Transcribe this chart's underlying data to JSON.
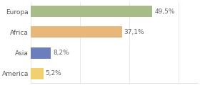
{
  "categories": [
    "Europa",
    "Africa",
    "Asia",
    "America"
  ],
  "values": [
    49.5,
    37.1,
    8.2,
    5.2
  ],
  "labels": [
    "49,5%",
    "37,1%",
    "8,2%",
    "5,2%"
  ],
  "bar_colors": [
    "#a8bb8a",
    "#e8b87a",
    "#6b7fbf",
    "#f0d070"
  ],
  "xlim": [
    0,
    68
  ],
  "background_color": "#ffffff",
  "label_fontsize": 6.5,
  "tick_fontsize": 6.5,
  "bar_height": 0.55
}
